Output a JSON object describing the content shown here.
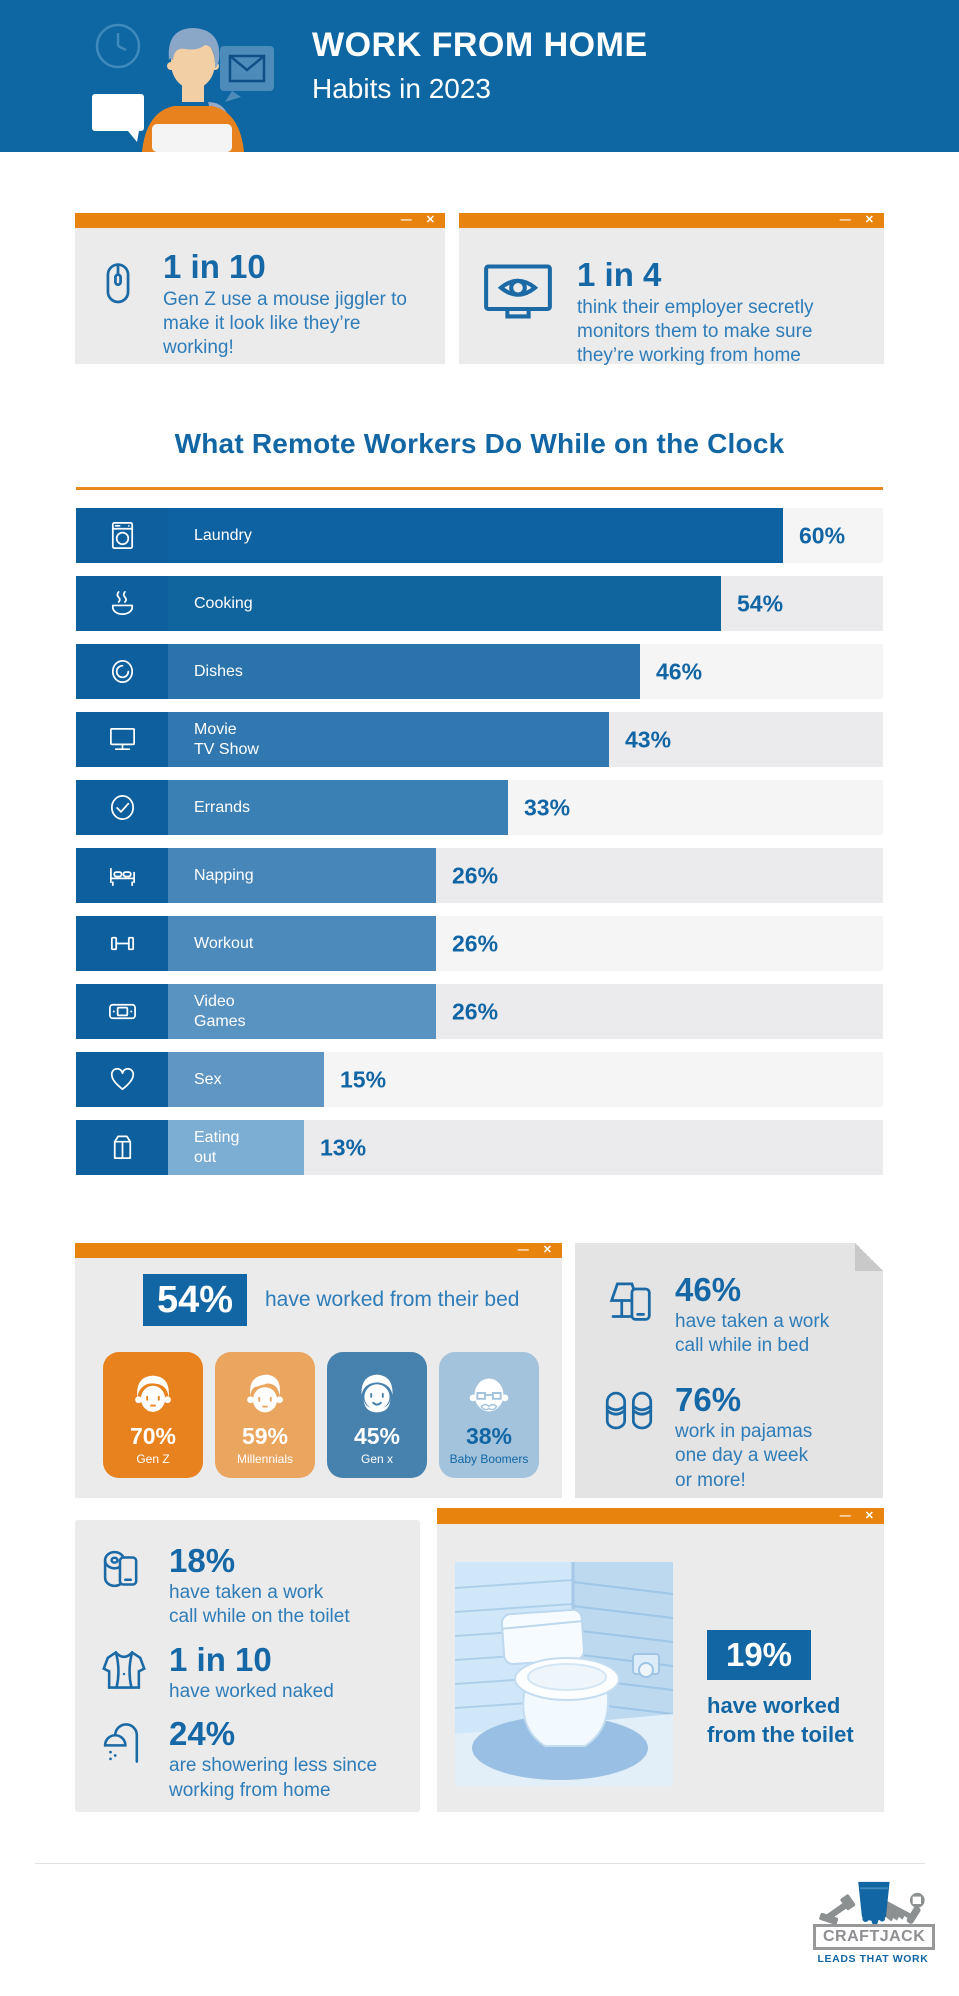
{
  "header": {
    "title": "WORK FROM HOME",
    "subtitle": "Habits in 2023"
  },
  "window_controls": {
    "minimize": "—",
    "close": "✕"
  },
  "top_cards": [
    {
      "stat": "1 in 10",
      "text": "Gen Z use a mouse jiggler to make it look like they’re working!",
      "icon": "mouse-icon"
    },
    {
      "stat": "1 in 4",
      "text": "think their employer secretly monitors them to make sure they’re working from home",
      "icon": "monitor-eye-icon"
    }
  ],
  "chart_data": {
    "type": "bar",
    "orientation": "horizontal",
    "title": "What Remote Workers Do While on the Clock",
    "unit": "%",
    "xlim": [
      0,
      100
    ],
    "grid": false,
    "categories": [
      "Laundry",
      "Cooking",
      "Dishes",
      "Movie TV Show",
      "Errands",
      "Napping",
      "Workout",
      "Video Games",
      "Sex",
      "Eating out"
    ],
    "values": [
      60,
      54,
      46,
      43,
      33,
      26,
      26,
      26,
      15,
      13
    ],
    "rows": [
      {
        "label": "Laundry",
        "value": 60,
        "display": "60%",
        "icon": "washing-machine-icon"
      },
      {
        "label": "Cooking",
        "value": 54,
        "display": "54%",
        "icon": "cooking-icon"
      },
      {
        "label": "Dishes",
        "value": 46,
        "display": "46%",
        "icon": "dishes-icon"
      },
      {
        "label": "Movie\nTV Show",
        "value": 43,
        "display": "43%",
        "icon": "movie-icon"
      },
      {
        "label": "Errands",
        "value": 33,
        "display": "33%",
        "icon": "errands-icon"
      },
      {
        "label": "Napping",
        "value": 26,
        "display": "26%",
        "icon": "napping-icon"
      },
      {
        "label": "Workout",
        "value": 26,
        "display": "26%",
        "icon": "workout-icon"
      },
      {
        "label": "Video\nGames",
        "value": 26,
        "display": "26%",
        "icon": "video-games-icon"
      },
      {
        "label": "Sex",
        "value": 15,
        "display": "15%",
        "icon": "heart-icon"
      },
      {
        "label": "Eating\nout",
        "value": 13,
        "display": "13%",
        "icon": "takeout-icon"
      }
    ],
    "bar_colors": [
      "#0e62a2",
      "#11659f",
      "#2a73ab",
      "#3078af",
      "#3b80b4",
      "#4786b9",
      "#4d8abc",
      "#5993c2",
      "#5f96c4",
      "#7cadd3"
    ],
    "chip_color": "#0d5f9e",
    "track_colors": {
      "odd": "#f5f5f6",
      "even": "#ebebed"
    }
  },
  "bed_card": {
    "stat": "54%",
    "caption": "have worked from their bed",
    "groups": [
      {
        "pct": "70%",
        "label": "Gen Z",
        "color": "#e8821e",
        "text_color": "#ffffff",
        "icon": "genz-face-icon"
      },
      {
        "pct": "59%",
        "label": "Millennials",
        "color": "#eaa55f",
        "text_color": "#ffffff",
        "icon": "millennial-face-icon"
      },
      {
        "pct": "45%",
        "label": "Gen x",
        "color": "#4682ad",
        "text_color": "#ffffff",
        "icon": "genx-face-icon"
      },
      {
        "pct": "38%",
        "label": "Baby Boomers",
        "color": "#a3c3dd",
        "text_color": "#1266a3",
        "icon": "boomer-face-icon"
      }
    ]
  },
  "bed_note": {
    "items": [
      {
        "stat": "46%",
        "text": "have taken a work\ncall while in bed",
        "icon": "lamp-phone-icon"
      },
      {
        "stat": "76%",
        "text": "work in pajamas\none day a week\nor more!",
        "icon": "slippers-icon"
      }
    ]
  },
  "bathroom_panel": {
    "items": [
      {
        "stat": "18%",
        "text": "have taken a work\ncall while on the toilet",
        "icon": "toilet-paper-phone-icon"
      },
      {
        "stat": "1 in 10",
        "text": "have worked naked",
        "icon": "open-shirt-icon"
      },
      {
        "stat": "24%",
        "text": "are showering less since\nworking from home",
        "icon": "shower-icon"
      }
    ]
  },
  "toilet_card": {
    "stat": "19%",
    "text": "have worked\nfrom the toilet"
  },
  "footer": {
    "brand": "CRAFTJACK",
    "tagline": "LEADS THAT WORK"
  },
  "colors": {
    "header_bg": "#0e67a3",
    "accent_orange": "#e8830d",
    "panel_gray": "#ebebeb",
    "note_gray": "#e4e4e4",
    "stat_blue": "#1567a6",
    "body_blue": "#2e7cb8",
    "deep_blue": "#1266a3"
  }
}
